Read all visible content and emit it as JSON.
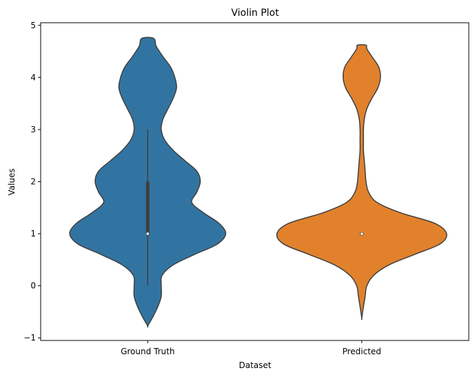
{
  "chart_data": {
    "type": "violin",
    "title": "Violin Plot",
    "xlabel": "Dataset",
    "ylabel": "Values",
    "ylim": [
      -1.05,
      5.05
    ],
    "yticks": [
      "-1",
      "0",
      "1",
      "2",
      "3",
      "4",
      "5"
    ],
    "categories": [
      "Ground Truth",
      "Predicted"
    ],
    "grid": false,
    "series": [
      {
        "category": "Ground Truth",
        "color": "#3274a1",
        "edge_color": "#3f3f3f",
        "box": {
          "whisker_low": 0,
          "q1": 1,
          "median": 1,
          "q3": 2,
          "whisker_high": 3
        },
        "density_profile": [
          [
            -0.77,
            0.0
          ],
          [
            -0.6,
            0.06
          ],
          [
            -0.4,
            0.12
          ],
          [
            -0.2,
            0.16
          ],
          [
            0.0,
            0.16
          ],
          [
            0.2,
            0.17
          ],
          [
            0.4,
            0.3
          ],
          [
            0.6,
            0.55
          ],
          [
            0.8,
            0.82
          ],
          [
            1.0,
            0.92
          ],
          [
            1.2,
            0.84
          ],
          [
            1.4,
            0.66
          ],
          [
            1.6,
            0.52
          ],
          [
            1.8,
            0.58
          ],
          [
            2.0,
            0.62
          ],
          [
            2.2,
            0.58
          ],
          [
            2.4,
            0.44
          ],
          [
            2.6,
            0.3
          ],
          [
            2.8,
            0.2
          ],
          [
            3.0,
            0.16
          ],
          [
            3.2,
            0.18
          ],
          [
            3.4,
            0.24
          ],
          [
            3.6,
            0.3
          ],
          [
            3.8,
            0.34
          ],
          [
            4.0,
            0.32
          ],
          [
            4.2,
            0.27
          ],
          [
            4.4,
            0.18
          ],
          [
            4.6,
            0.1
          ],
          [
            4.75,
            0.07
          ]
        ]
      },
      {
        "category": "Predicted",
        "color": "#e1812c",
        "edge_color": "#3f3f3f",
        "box": {
          "whisker_low": 1,
          "q1": 1,
          "median": 1,
          "q3": 1,
          "whisker_high": 1
        },
        "density_profile": [
          [
            -0.62,
            0.0
          ],
          [
            -0.4,
            0.02
          ],
          [
            -0.2,
            0.04
          ],
          [
            0.0,
            0.06
          ],
          [
            0.2,
            0.14
          ],
          [
            0.4,
            0.32
          ],
          [
            0.6,
            0.62
          ],
          [
            0.8,
            0.92
          ],
          [
            1.0,
            1.0
          ],
          [
            1.2,
            0.86
          ],
          [
            1.4,
            0.46
          ],
          [
            1.6,
            0.18
          ],
          [
            1.8,
            0.08
          ],
          [
            2.0,
            0.05
          ],
          [
            2.2,
            0.04
          ],
          [
            2.4,
            0.03
          ],
          [
            2.6,
            0.02
          ],
          [
            2.8,
            0.02
          ],
          [
            3.0,
            0.02
          ],
          [
            3.2,
            0.03
          ],
          [
            3.4,
            0.06
          ],
          [
            3.6,
            0.12
          ],
          [
            3.8,
            0.19
          ],
          [
            4.0,
            0.22
          ],
          [
            4.2,
            0.2
          ],
          [
            4.4,
            0.12
          ],
          [
            4.55,
            0.06
          ],
          [
            4.62,
            0.05
          ]
        ]
      }
    ]
  }
}
